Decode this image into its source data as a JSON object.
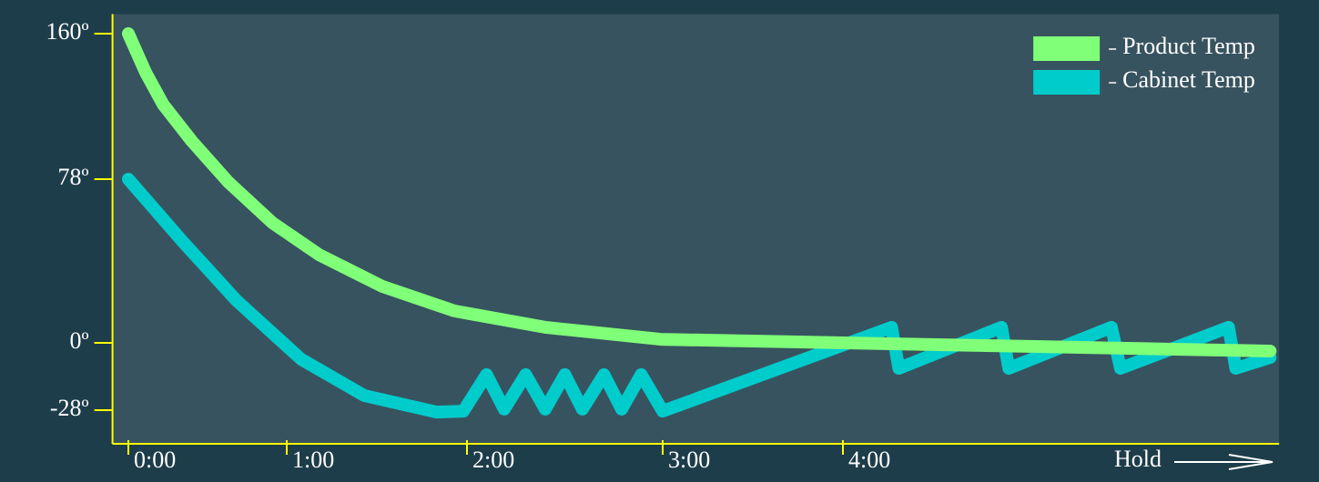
{
  "chart_data": {
    "type": "line",
    "x_annotation": "Hold",
    "xlim": [
      -0.1,
      6.42
    ],
    "ylim": [
      -42,
      171
    ],
    "xticks": [
      {
        "value": 0,
        "label": "0:00"
      },
      {
        "value": 1,
        "label": "1:00"
      },
      {
        "value": 2,
        "label": "2:00"
      },
      {
        "value": 3,
        "label": "3:00"
      },
      {
        "value": 4,
        "label": "4:00"
      }
    ],
    "yticks": [
      {
        "value": -28,
        "label": "-28º"
      },
      {
        "value": 0,
        "label": "0º"
      },
      {
        "value": 78,
        "label": "78º"
      },
      {
        "value": 160,
        "label": "160º"
      }
    ],
    "legend": "top-right",
    "series": [
      {
        "name": "Product Temp",
        "color": "#80ff78",
        "x": [
          0,
          0.11,
          0.22,
          0.4,
          0.63,
          0.91,
          1.18,
          1.53,
          1.93,
          2.4,
          2.99,
          6.37
        ],
        "values": [
          160,
          138,
          120,
          99.5,
          76.7,
          57.2,
          42,
          26.9,
          15.2,
          7.4,
          1.7,
          -3.4
        ]
      },
      {
        "name": "Cabinet Temp",
        "color": "#00cccc",
        "x": [
          0,
          0.34,
          0.68,
          1.08,
          1.43,
          1.83,
          1.98,
          2.1,
          2.19,
          2.3,
          2.4,
          2.5,
          2.59,
          2.7,
          2.79,
          2.89,
          3.0,
          4.27,
          4.31,
          4.88,
          4.92,
          5.49,
          5.54,
          6.14,
          6.18,
          6.37
        ],
        "values": [
          78,
          48.5,
          20.4,
          -6.8,
          -21.9,
          -28.8,
          -28.4,
          -13.2,
          -27.6,
          -13.2,
          -27.6,
          -13.2,
          -27.6,
          -13.2,
          -27.6,
          -13.2,
          -28.4,
          7.4,
          -10.6,
          7.4,
          -10.6,
          7.4,
          -10.6,
          7.4,
          -10.6,
          -6.1
        ]
      }
    ]
  }
}
